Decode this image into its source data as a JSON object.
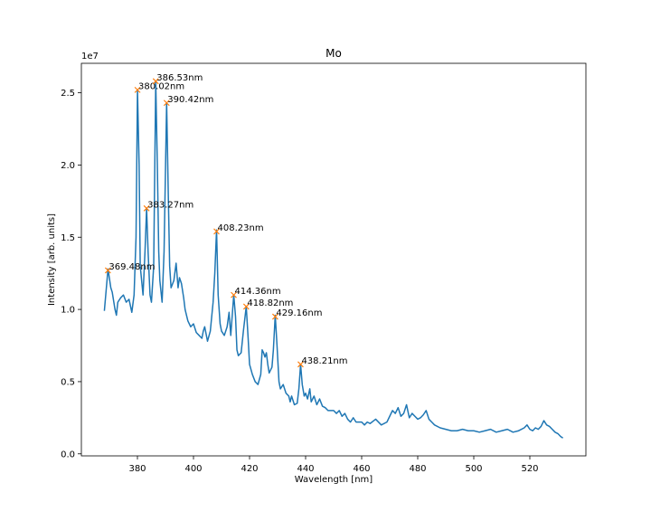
{
  "chart_data": {
    "type": "line",
    "title": "Mo",
    "xlabel": "Wavelength [nm]",
    "ylabel": "Intensity [arb. units]",
    "y_offset_label": "1e7",
    "x": [
      368.2,
      369.5,
      370.5,
      371,
      372,
      372.5,
      373,
      374,
      375,
      376,
      377,
      378,
      378.8,
      379.5,
      380.02,
      380.6,
      381,
      382,
      382.7,
      383.27,
      383.8,
      384.5,
      385,
      385.8,
      386.53,
      387.1,
      387.6,
      388,
      388.8,
      389.5,
      390.42,
      391,
      391.5,
      392,
      393,
      393.8,
      394.5,
      395,
      395.7,
      396.5,
      397,
      398,
      399,
      400,
      401,
      402,
      403,
      403.5,
      404,
      405,
      406,
      407,
      407.6,
      408.23,
      408.8,
      409.5,
      410,
      411,
      412,
      412.7,
      413.3,
      414.36,
      415,
      415.5,
      416,
      417,
      417.8,
      418.82,
      419.5,
      420,
      421,
      422,
      423,
      424,
      424.5,
      425,
      425.5,
      426,
      426.5,
      427,
      428,
      428.5,
      429.16,
      429.8,
      430.5,
      431,
      432,
      433,
      434,
      434.5,
      435,
      436,
      437,
      437.6,
      438.21,
      438.8,
      439.5,
      440,
      440.7,
      441.5,
      442,
      443,
      444,
      445,
      446,
      447,
      448,
      450,
      451,
      452,
      453,
      454,
      455,
      456,
      457,
      458,
      460,
      461,
      462,
      463,
      465,
      467,
      469,
      470,
      471,
      472,
      473,
      474,
      475,
      476,
      477,
      478,
      479,
      480,
      481,
      482,
      483,
      484,
      485,
      486,
      488,
      490,
      492,
      494,
      496,
      498,
      500,
      502,
      504,
      506,
      508,
      510,
      512,
      514,
      516,
      518,
      519,
      520,
      521,
      522,
      523,
      524,
      525,
      526,
      527,
      528,
      529,
      530,
      531,
      531.8
    ],
    "series": [
      {
        "color": "#1f77b4",
        "values": [
          0.99,
          1.28,
          1.15,
          1.12,
          1.0,
          0.96,
          1.05,
          1.08,
          1.1,
          1.05,
          1.07,
          0.98,
          1.1,
          1.5,
          2.52,
          2.0,
          1.3,
          1.1,
          1.4,
          1.7,
          1.4,
          1.1,
          1.05,
          1.3,
          2.58,
          2.0,
          1.4,
          1.2,
          1.05,
          1.4,
          2.43,
          1.8,
          1.3,
          1.15,
          1.2,
          1.32,
          1.15,
          1.22,
          1.18,
          1.08,
          1.0,
          0.92,
          0.88,
          0.9,
          0.84,
          0.82,
          0.8,
          0.85,
          0.88,
          0.78,
          0.85,
          1.05,
          1.25,
          1.55,
          1.1,
          0.9,
          0.85,
          0.82,
          0.88,
          0.98,
          0.82,
          1.1,
          0.95,
          0.72,
          0.68,
          0.7,
          0.85,
          1.02,
          0.8,
          0.62,
          0.55,
          0.5,
          0.48,
          0.55,
          0.72,
          0.7,
          0.67,
          0.7,
          0.62,
          0.56,
          0.6,
          0.72,
          0.96,
          0.75,
          0.5,
          0.45,
          0.48,
          0.42,
          0.4,
          0.36,
          0.4,
          0.34,
          0.35,
          0.45,
          0.62,
          0.48,
          0.4,
          0.42,
          0.38,
          0.45,
          0.36,
          0.4,
          0.34,
          0.38,
          0.33,
          0.32,
          0.3,
          0.3,
          0.28,
          0.3,
          0.26,
          0.28,
          0.24,
          0.22,
          0.25,
          0.22,
          0.22,
          0.2,
          0.22,
          0.21,
          0.24,
          0.2,
          0.22,
          0.26,
          0.3,
          0.28,
          0.32,
          0.26,
          0.28,
          0.34,
          0.25,
          0.28,
          0.26,
          0.24,
          0.25,
          0.27,
          0.3,
          0.24,
          0.22,
          0.2,
          0.18,
          0.17,
          0.16,
          0.16,
          0.17,
          0.16,
          0.16,
          0.15,
          0.16,
          0.17,
          0.15,
          0.16,
          0.17,
          0.15,
          0.16,
          0.18,
          0.2,
          0.17,
          0.16,
          0.18,
          0.17,
          0.19,
          0.23,
          0.2,
          0.19,
          0.17,
          0.15,
          0.14,
          0.12,
          0.11
        ]
      }
    ],
    "peaks": {
      "color": "#ff7f0e",
      "x": [
        369.48,
        380.02,
        383.27,
        386.53,
        390.42,
        408.23,
        414.36,
        418.82,
        429.16,
        438.21
      ],
      "values": [
        1.27,
        2.52,
        1.7,
        2.58,
        2.43,
        1.54,
        1.1,
        1.02,
        0.95,
        0.62
      ],
      "labels": [
        "369.48nm",
        "380.02nm",
        "383.27nm",
        "386.53nm",
        "390.42nm",
        "408.23nm",
        "414.36nm",
        "418.82nm",
        "429.16nm",
        "438.21nm"
      ]
    },
    "xlim": [
      360,
      540
    ],
    "ylim": [
      -0.014,
      2.704
    ],
    "xticks": [
      380,
      400,
      420,
      440,
      460,
      480,
      500,
      520
    ],
    "yticks": [
      {
        "value": 0,
        "label": "0.0"
      },
      {
        "value": 0.5,
        "label": "0.5"
      },
      {
        "value": 1,
        "label": "1.0"
      },
      {
        "value": 1.5,
        "label": "1.5"
      },
      {
        "value": 2,
        "label": "2.0"
      },
      {
        "value": 2.5,
        "label": "2.5"
      }
    ]
  }
}
